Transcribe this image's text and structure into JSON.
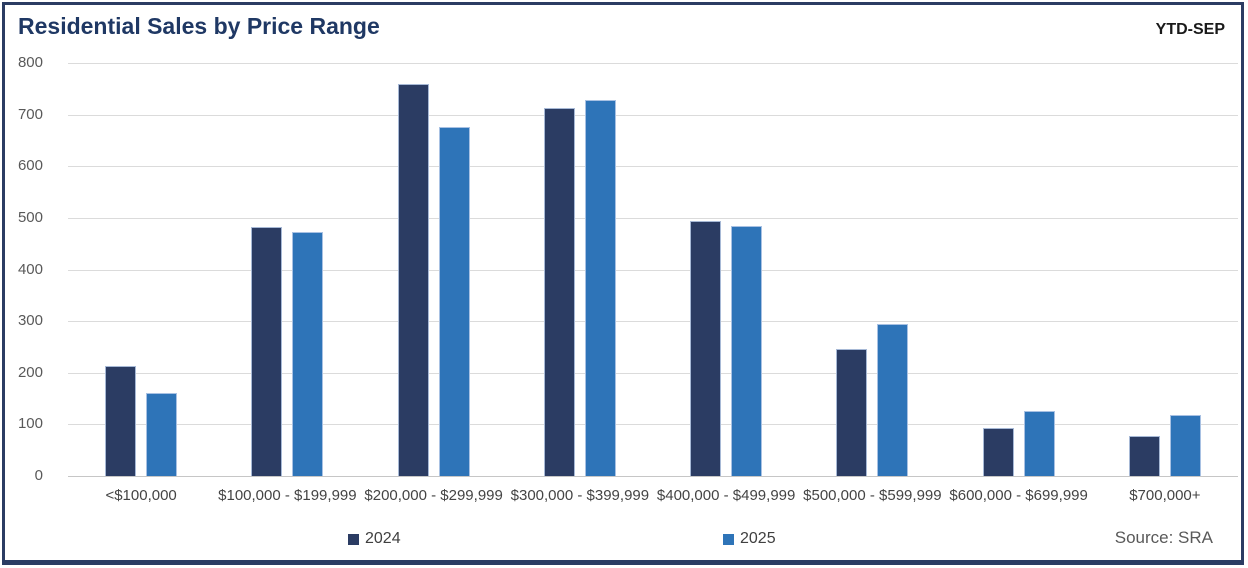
{
  "header": {
    "title": "Residential Sales by Price Range",
    "period_label": "YTD-SEP"
  },
  "footer": {
    "source_label": "Source: SRA"
  },
  "colors": {
    "frame_border": "#2B3C63",
    "title_text": "#1F3864",
    "series_2024": "#2B3C63",
    "series_2025": "#2E74B8",
    "gridline": "#DBDBDB",
    "axis_line": "#C6C6C6",
    "tick_label": "#595959",
    "category_label": "#444444"
  },
  "chart_data": {
    "type": "bar",
    "title": "Residential Sales by Price Range",
    "subtitle": "YTD-SEP",
    "categories": [
      "<$100,000",
      "$100,000 - $199,999",
      "$200,000 - $299,999",
      "$300,000 - $399,999",
      "$400,000 - $499,999",
      "$500,000 - $599,999",
      "$600,000 - $699,999",
      "$700,000+"
    ],
    "series": [
      {
        "name": "2024",
        "color": "#2B3C63",
        "values": [
          213,
          483,
          760,
          713,
          494,
          246,
          93,
          78
        ]
      },
      {
        "name": "2025",
        "color": "#2E74B8",
        "values": [
          161,
          472,
          677,
          728,
          484,
          294,
          126,
          118
        ]
      }
    ],
    "xlabel": "",
    "ylabel": "",
    "ylim": [
      0,
      800
    ],
    "yticks": [
      0,
      100,
      200,
      300,
      400,
      500,
      600,
      700,
      800
    ],
    "grid": "horizontal",
    "legend_position": "bottom",
    "source": "Source: SRA"
  }
}
